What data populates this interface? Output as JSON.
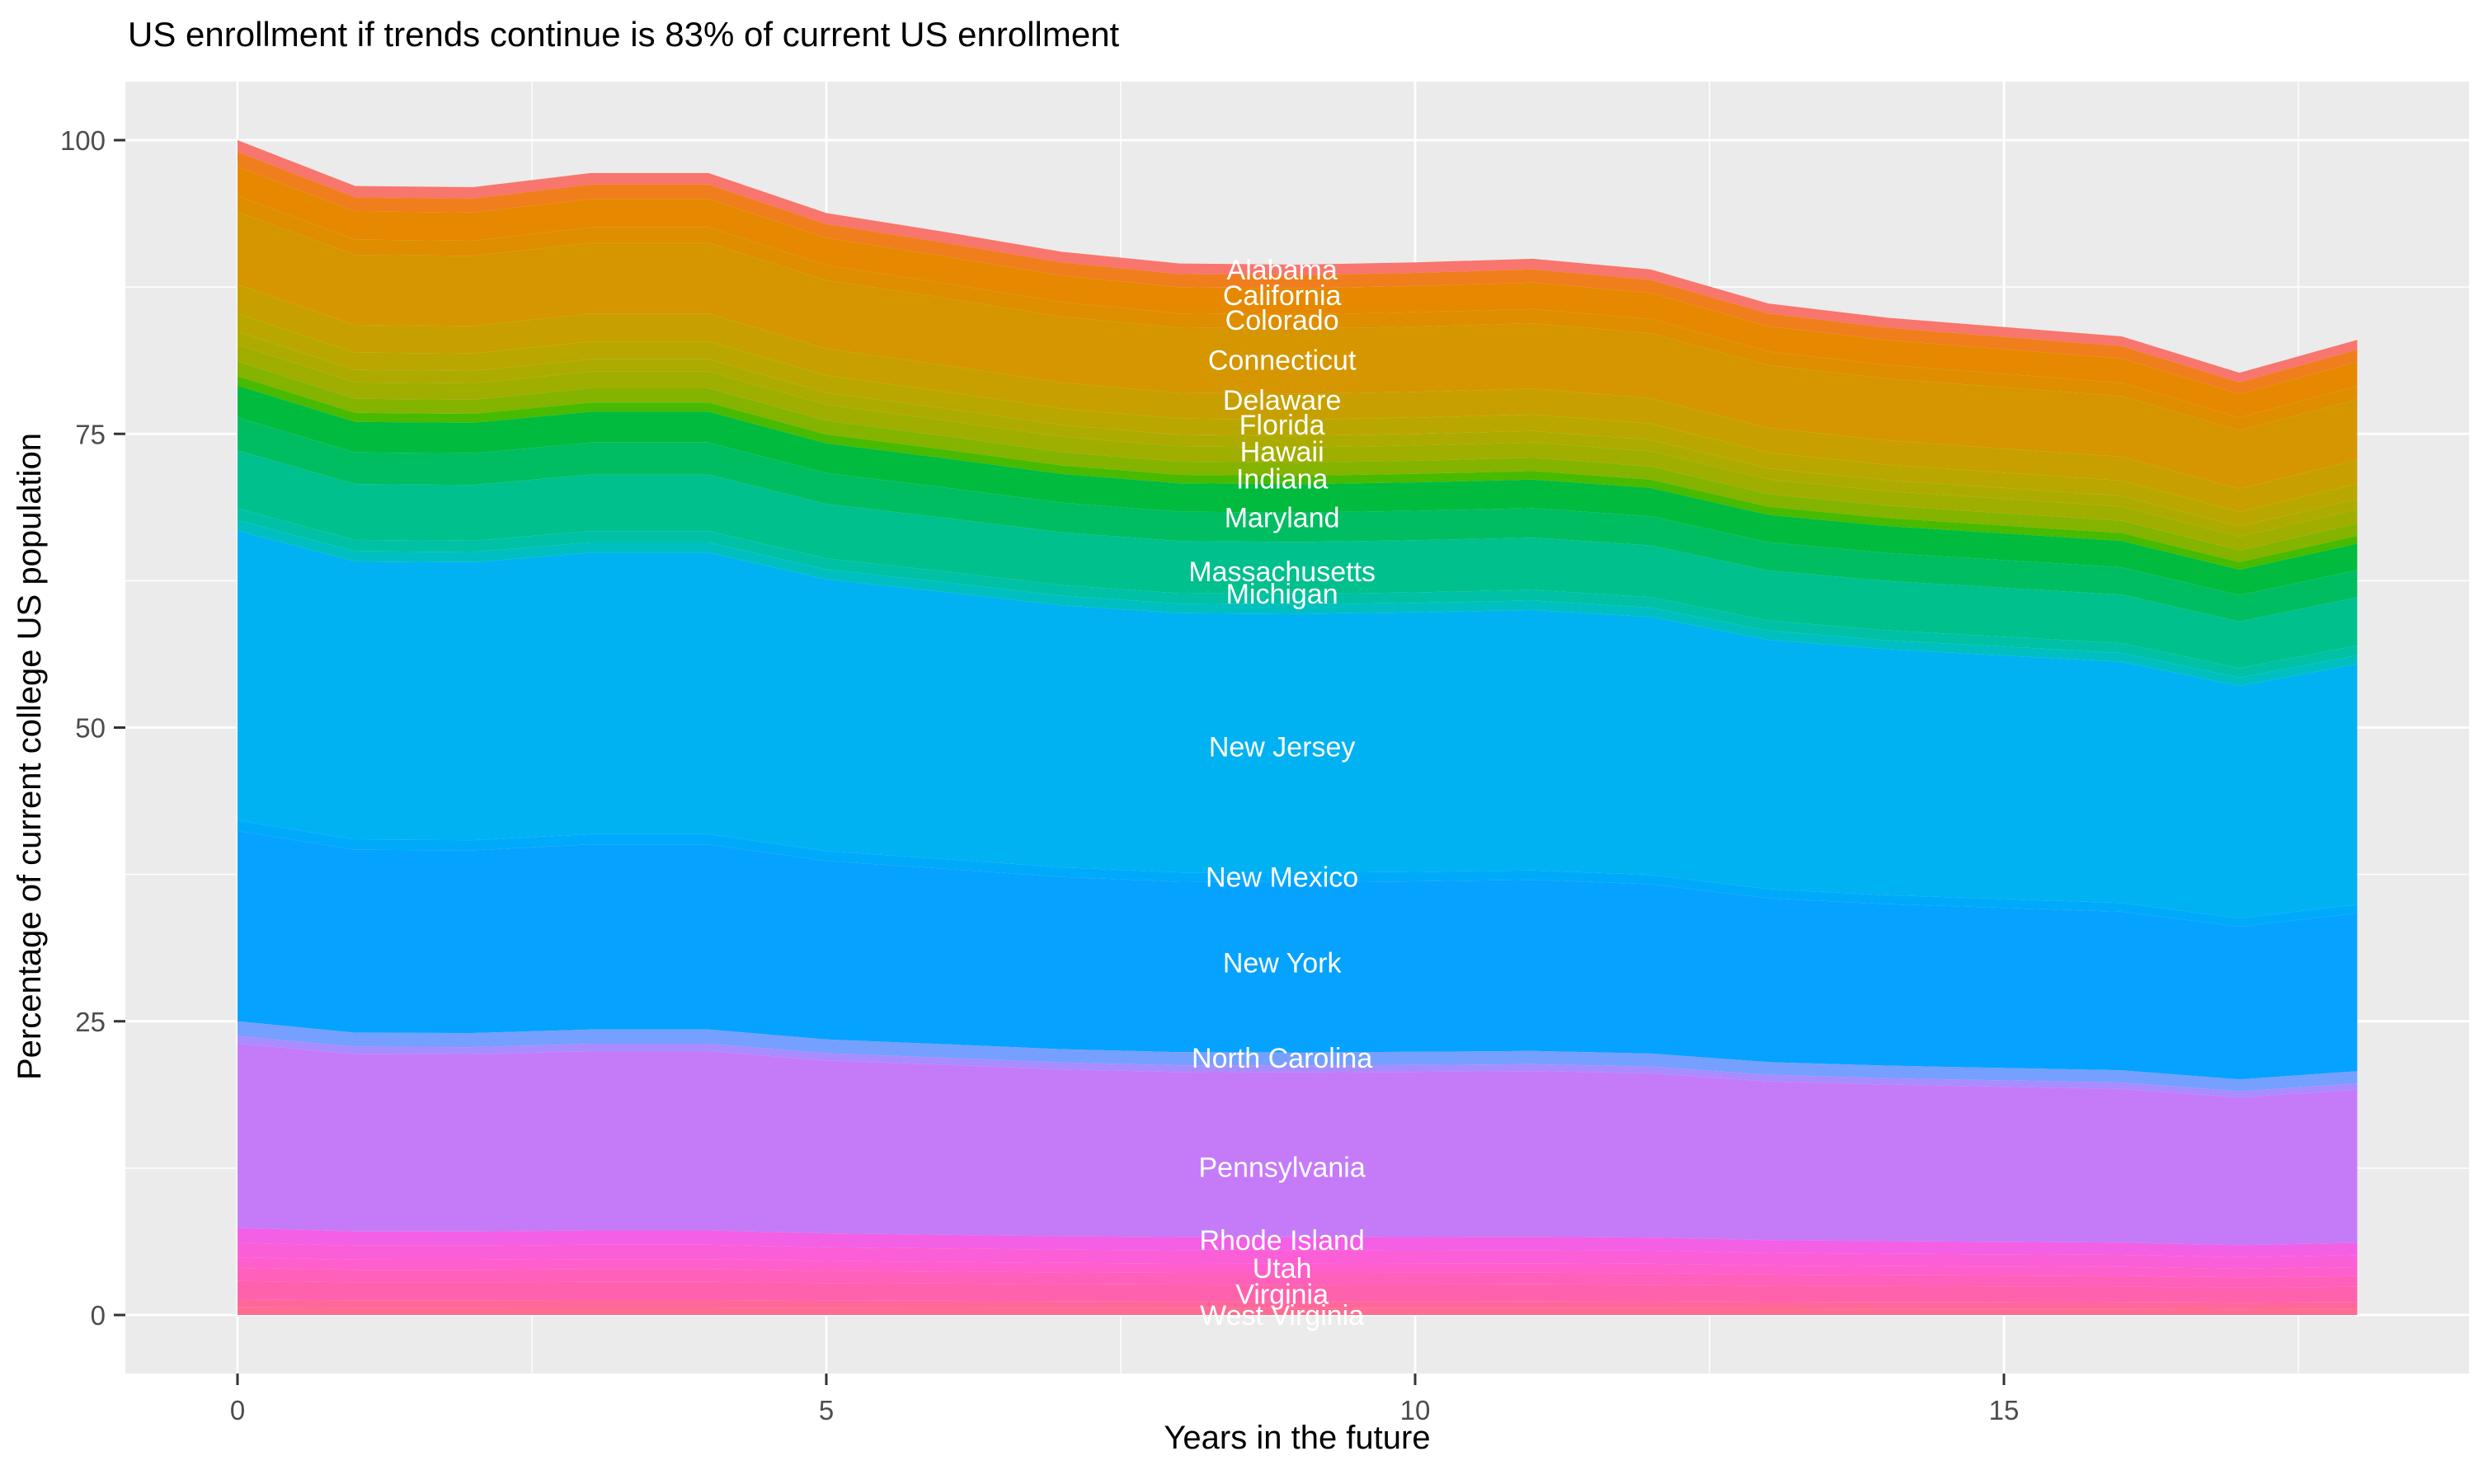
{
  "chart_data": {
    "type": "area",
    "stacked": true,
    "title": "US enrollment if trends continue is 83% of current US enrollment",
    "xlabel": "Years in the future",
    "ylabel": "Percentage of current college US population",
    "x_years": [
      0,
      1,
      2,
      3,
      4,
      5,
      6,
      7,
      8,
      9,
      10,
      11,
      12,
      13,
      14,
      15,
      16,
      17,
      18
    ],
    "xlim": [
      -0.95,
      18.95
    ],
    "ylim": [
      -5,
      105
    ],
    "xticks": [
      0,
      5,
      10,
      15
    ],
    "yticks": [
      0,
      25,
      50,
      75,
      100
    ],
    "x_minor_gridlines": [
      2.5,
      7.5,
      12.5,
      17.5
    ],
    "y_minor_gridlines": [
      12.5,
      37.5,
      62.5,
      87.5
    ],
    "grid": "white major and minor gridlines on grey panel",
    "legend": "none (white state labels drawn inside plot)",
    "totals_pct": [
      100,
      96.1,
      96.0,
      97.2,
      97.2,
      93.8,
      92.2,
      90.5,
      89.5,
      89.4,
      89.6,
      89.9,
      89.0,
      86.1,
      84.9,
      84.1,
      83.3,
      80.2,
      83.0
    ],
    "stacking_note": "bands listed top-to-bottom; band value at year t = share_pct * totals_pct[t] / 100; bands with empty label are unlabeled states lying alphabetically between the labeled ones",
    "bands": [
      {
        "label": "Alabama",
        "share_pct": 1.0,
        "color": "#F8766D"
      },
      {
        "label": "",
        "share_pct": 1.25,
        "color": "#F07E1D"
      },
      {
        "label": "California",
        "share_pct": 2.5,
        "color": "#E68900"
      },
      {
        "label": "Colorado",
        "share_pct": 1.35,
        "color": "#DF8E00"
      },
      {
        "label": "Connecticut",
        "share_pct": 6.2,
        "color": "#D59600"
      },
      {
        "label": "Delaware",
        "share_pct": 2.45,
        "color": "#C7A000"
      },
      {
        "label": "Florida",
        "share_pct": 1.55,
        "color": "#B9A700"
      },
      {
        "label": "",
        "share_pct": 1.1,
        "color": "#ADAB00"
      },
      {
        "label": "Hawaii",
        "share_pct": 1.45,
        "color": "#A0AE00"
      },
      {
        "label": "",
        "share_pct": 1.25,
        "color": "#84B300"
      },
      {
        "label": "Indiana",
        "share_pct": 0.8,
        "color": "#48BA00"
      },
      {
        "label": "",
        "share_pct": 2.7,
        "color": "#00BB3E"
      },
      {
        "label": "Maryland",
        "share_pct": 2.8,
        "color": "#00BD62"
      },
      {
        "label": "Massachusetts",
        "share_pct": 4.95,
        "color": "#00C08D"
      },
      {
        "label": "Michigan",
        "share_pct": 1.0,
        "color": "#00C1A5"
      },
      {
        "label": "",
        "share_pct": 0.9,
        "color": "#00BFC0"
      },
      {
        "label": "New Jersey",
        "share_pct": 24.65,
        "color": "#00B2F2"
      },
      {
        "label": "New Mexico",
        "share_pct": 0.9,
        "color": "#00AAFB"
      },
      {
        "label": "New York",
        "share_pct": 16.2,
        "color": "#06A2FF"
      },
      {
        "label": "North Carolina",
        "share_pct": 1.25,
        "color": "#75A0FF"
      },
      {
        "label": "",
        "share_pct": 0.65,
        "color": "#A98CFF"
      },
      {
        "label": "Pennsylvania",
        "share_pct": 15.7,
        "color": "#C57BF8"
      },
      {
        "label": "Rhode Island",
        "share_pct": 1.25,
        "color": "#F35FE5"
      },
      {
        "label": "",
        "share_pct": 1.25,
        "color": "#FB5FD8"
      },
      {
        "label": "Utah",
        "share_pct": 0.9,
        "color": "#FF5FCC"
      },
      {
        "label": "",
        "share_pct": 1.1,
        "color": "#FF60BC"
      },
      {
        "label": "Virginia",
        "share_pct": 1.6,
        "color": "#FF62AC"
      },
      {
        "label": "West Virginia",
        "share_pct": 0.65,
        "color": "#FF679B"
      },
      {
        "label": "",
        "share_pct": 0.65,
        "color": "#FF6C92"
      }
    ],
    "state_labels": {
      "x_year": 8.87,
      "color": "#FFFFFF",
      "items": [
        {
          "text": "Alabama",
          "y_pct": 89.0
        },
        {
          "text": "California",
          "y_pct": 86.8
        },
        {
          "text": "Colorado",
          "y_pct": 84.7
        },
        {
          "text": "Connecticut",
          "y_pct": 81.3
        },
        {
          "text": "Delaware",
          "y_pct": 77.9
        },
        {
          "text": "Florida",
          "y_pct": 75.8
        },
        {
          "text": "Hawaii",
          "y_pct": 73.5
        },
        {
          "text": "Indiana",
          "y_pct": 71.2
        },
        {
          "text": "Maryland",
          "y_pct": 67.9
        },
        {
          "text": "Massachusetts",
          "y_pct": 63.3
        },
        {
          "text": "Michigan",
          "y_pct": 61.4
        },
        {
          "text": "New Jersey",
          "y_pct": 48.4
        },
        {
          "text": "New Mexico",
          "y_pct": 37.3
        },
        {
          "text": "New York",
          "y_pct": 30.0
        },
        {
          "text": "North Carolina",
          "y_pct": 21.9
        },
        {
          "text": "Pennsylvania",
          "y_pct": 12.6
        },
        {
          "text": "Rhode Island",
          "y_pct": 6.4
        },
        {
          "text": "Utah",
          "y_pct": 4.0
        },
        {
          "text": "Virginia",
          "y_pct": 1.8
        },
        {
          "text": "West Virginia",
          "y_pct": 0.0
        }
      ]
    },
    "panel_bg": "#EBEBEB",
    "grid_color": "#FFFFFF",
    "tick_label_color": "#4D4D4D",
    "tick_mark_color": "#333333",
    "text_color": "#000000"
  }
}
